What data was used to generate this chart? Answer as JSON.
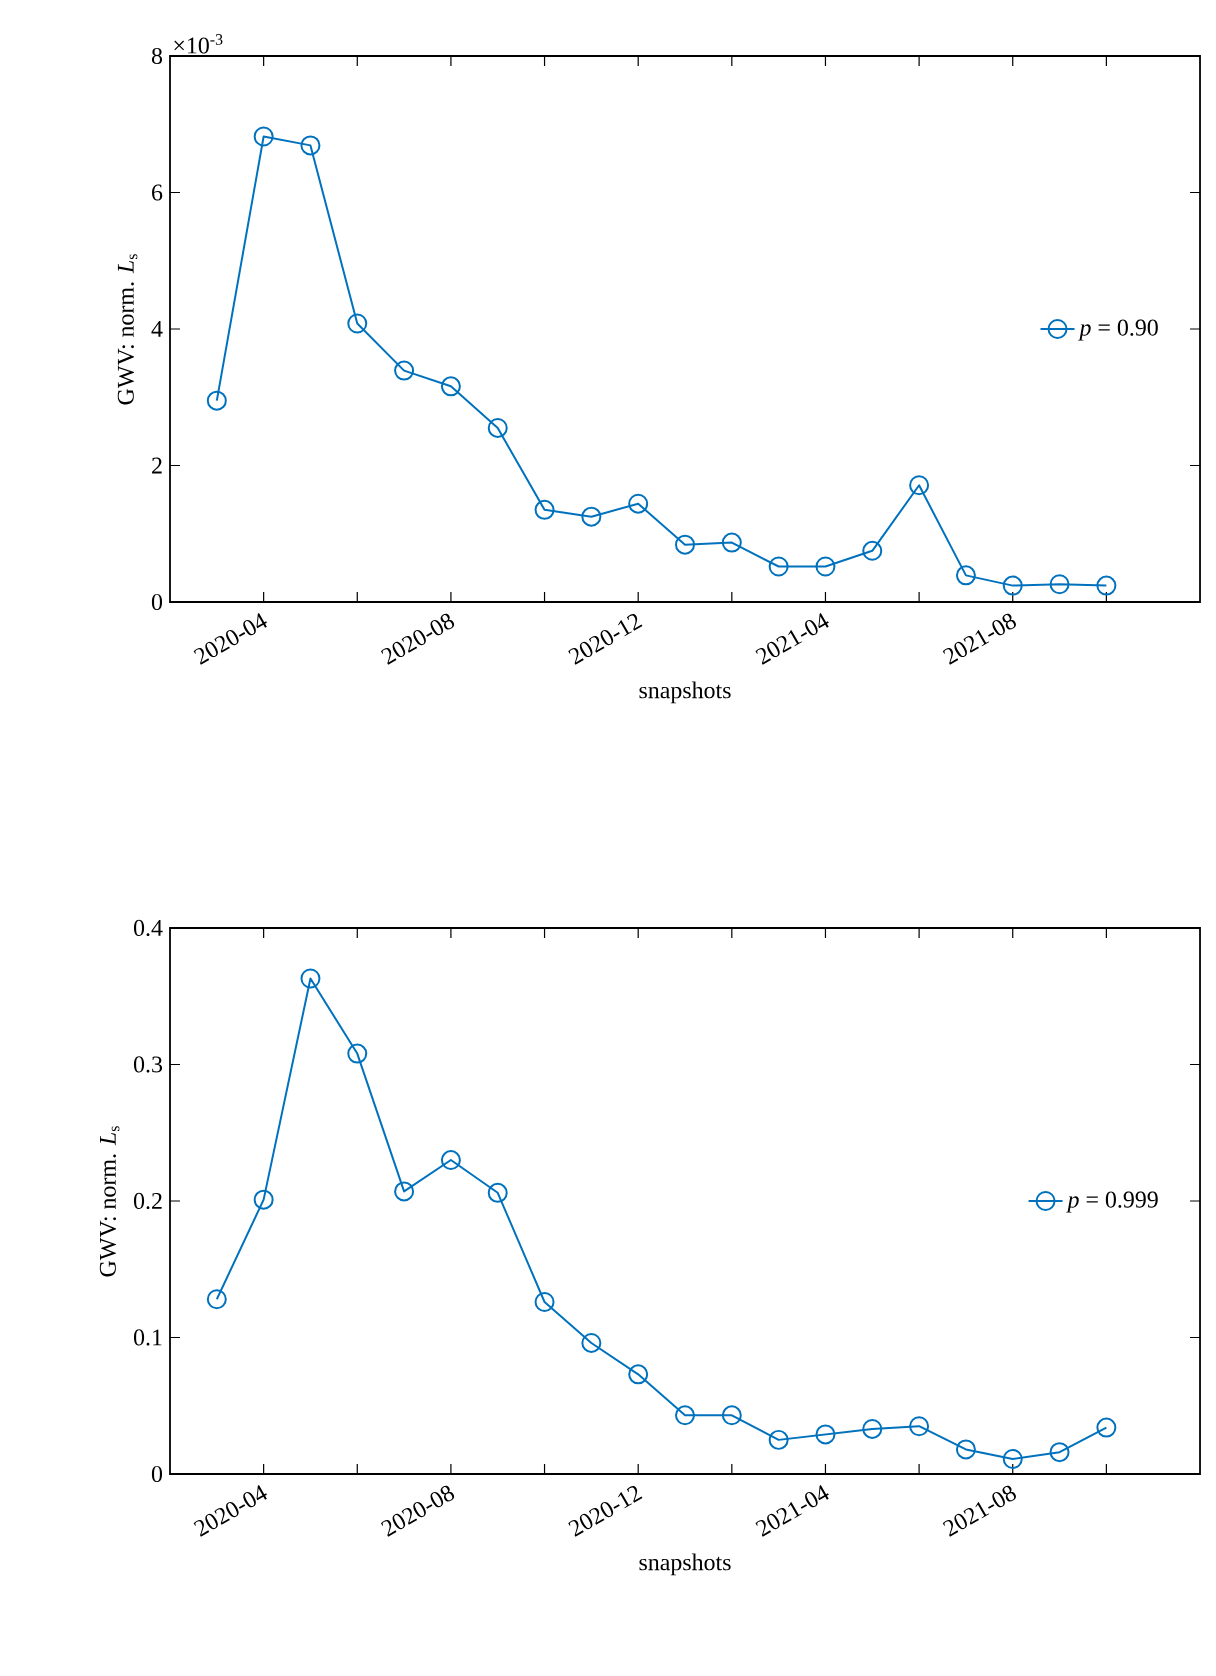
{
  "chart_data": [
    {
      "type": "line",
      "xlabel": "snapshots",
      "ylabel": "GWV: norm. *L*$_{s}$",
      "annotations": [
        "×10$^{-3}$"
      ],
      "x": [
        "2020-03",
        "2020-04",
        "2020-05",
        "2020-06",
        "2020-07",
        "2020-08",
        "2020-09",
        "2020-10",
        "2020-11",
        "2020-12",
        "2021-01",
        "2021-02",
        "2021-03",
        "2021-04",
        "2021-05",
        "2021-06",
        "2021-07",
        "2021-08",
        "2021-09",
        "2021-10"
      ],
      "series": [
        {
          "name": "*p* = 0.90",
          "color": "#0072bd",
          "values": [
            2.95,
            6.82,
            6.69,
            4.08,
            3.39,
            3.16,
            2.55,
            1.35,
            1.25,
            1.44,
            0.84,
            0.87,
            0.52,
            0.52,
            0.75,
            1.71,
            0.39,
            0.24,
            0.26,
            0.24
          ]
        }
      ],
      "xlim": [
        "2020-02",
        "2021-12"
      ],
      "xticks": [
        {
          "value": "2020-04",
          "label": "2020-04"
        },
        {
          "value": "2020-06",
          "label": null
        },
        {
          "value": "2020-08",
          "label": "2020-08"
        },
        {
          "value": "2020-10",
          "label": null
        },
        {
          "value": "2020-12",
          "label": "2020-12"
        },
        {
          "value": "2021-02",
          "label": null
        },
        {
          "value": "2021-04",
          "label": "2021-04"
        },
        {
          "value": "2021-06",
          "label": null
        },
        {
          "value": "2021-08",
          "label": "2021-08"
        },
        {
          "value": "2021-10",
          "label": null
        }
      ],
      "ylim": [
        0,
        8
      ],
      "yticks": [
        0,
        2,
        4,
        6,
        8
      ],
      "legend": "right",
      "marker": "circle",
      "line_style": "solid",
      "grid": false
    },
    {
      "type": "line",
      "xlabel": "snapshots",
      "ylabel": "GWV: norm. *L*$_{s}$",
      "x": [
        "2020-03",
        "2020-04",
        "2020-05",
        "2020-06",
        "2020-07",
        "2020-08",
        "2020-09",
        "2020-10",
        "2020-11",
        "2020-12",
        "2021-01",
        "2021-02",
        "2021-03",
        "2021-04",
        "2021-05",
        "2021-06",
        "2021-07",
        "2021-08",
        "2021-09",
        "2021-10"
      ],
      "series": [
        {
          "name": "*p* = 0.999",
          "color": "#0072bd",
          "values": [
            0.128,
            0.201,
            0.363,
            0.308,
            0.207,
            0.23,
            0.206,
            0.126,
            0.096,
            0.073,
            0.043,
            0.043,
            0.025,
            0.029,
            0.033,
            0.035,
            0.018,
            0.011,
            0.016,
            0.034
          ]
        }
      ],
      "xlim": [
        "2020-02",
        "2021-12"
      ],
      "xticks": [
        {
          "value": "2020-04",
          "label": "2020-04"
        },
        {
          "value": "2020-06",
          "label": null
        },
        {
          "value": "2020-08",
          "label": "2020-08"
        },
        {
          "value": "2020-10",
          "label": null
        },
        {
          "value": "2020-12",
          "label": "2020-12"
        },
        {
          "value": "2021-02",
          "label": null
        },
        {
          "value": "2021-04",
          "label": "2021-04"
        },
        {
          "value": "2021-06",
          "label": null
        },
        {
          "value": "2021-08",
          "label": "2021-08"
        },
        {
          "value": "2021-10",
          "label": null
        }
      ],
      "ylim": [
        0,
        0.4
      ],
      "yticks": [
        0,
        0.1,
        0.2,
        0.3,
        0.4
      ],
      "legend": "right",
      "marker": "circle",
      "line_style": "solid",
      "grid": false
    }
  ]
}
